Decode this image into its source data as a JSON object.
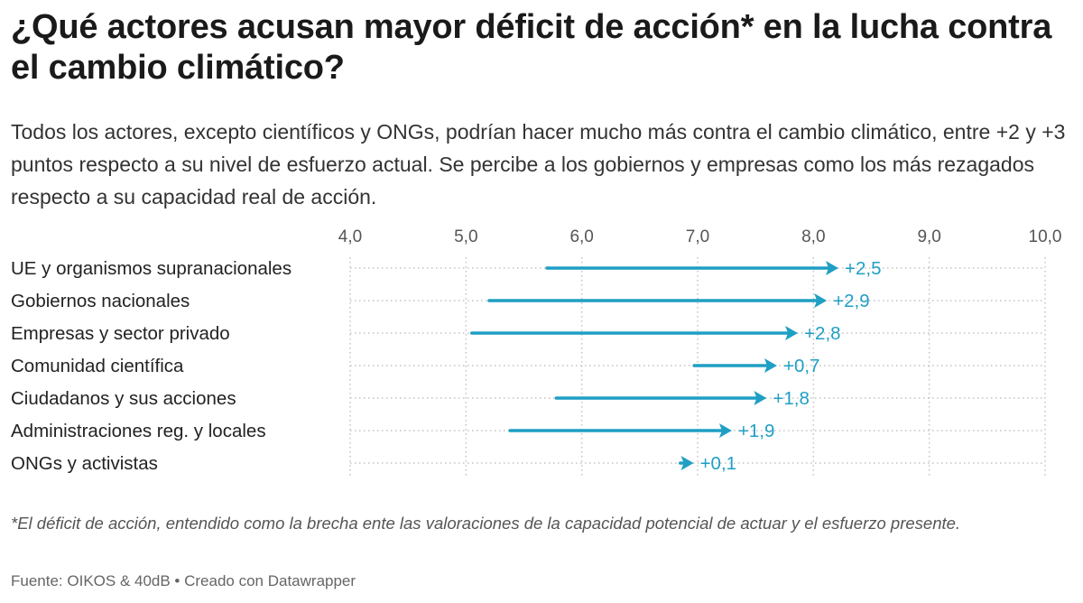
{
  "title": "¿Qué actores acusan mayor déficit de acción* en la lucha contra el cambio climático?",
  "subtitle": "Todos los actores, excepto científicos y ONGs, podrían hacer mucho más contra el cambio climático, entre +2 y +3 puntos respecto a su nivel de esfuerzo actual. Se percibe a los gobiernos y empresas como los más rezagados respecto a su capacidad real de acción.",
  "footnote": "*El déficit de acción, entendido como la brecha ente las valoraciones de la capacidad potencial de actuar y el esfuerzo presente.",
  "source": "Fuente: OIKOS & 40dB • Creado con Datawrapper",
  "colors": {
    "arrow": "#1f9fc4",
    "grid": "#c4c4c4",
    "axis_text": "#555555",
    "label_text": "#222222"
  },
  "chart_data": {
    "type": "arrow",
    "title": "¿Qué actores acusan mayor déficit de acción* en la lucha contra el cambio climático?",
    "xlim": [
      4,
      10
    ],
    "x_ticks": [
      4,
      5,
      6,
      7,
      8,
      9,
      10
    ],
    "x_tick_labels": [
      "4,0",
      "5,0",
      "6,0",
      "7,0",
      "8,0",
      "9,0",
      "10,0"
    ],
    "axis_position": "top",
    "grid": true,
    "categories": [
      "UE y organismos supranacionales",
      "Gobiernos nacionales",
      "Empresas y sector privado",
      "Comunidad científica",
      "Ciudadanos y sus acciones",
      "Administraciones reg. y locales",
      "ONGs y activistas"
    ],
    "series": [
      {
        "name": "Esfuerzo presente",
        "values": [
          5.7,
          5.2,
          5.05,
          6.97,
          5.78,
          5.38,
          6.85
        ]
      },
      {
        "name": "Capacidad potencial de actuar",
        "values": [
          8.2,
          8.1,
          7.85,
          7.67,
          7.58,
          7.28,
          6.95
        ]
      }
    ],
    "labels": [
      "+2,5",
      "+2,9",
      "+2,8",
      "+0,7",
      "+1,8",
      "+1,9",
      "+0,1"
    ]
  }
}
